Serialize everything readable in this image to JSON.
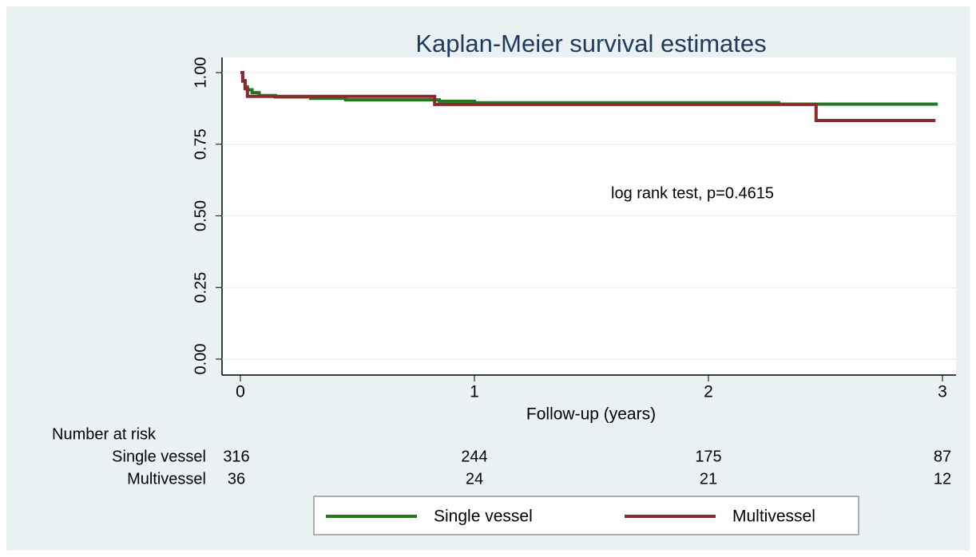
{
  "chart_data": {
    "type": "step",
    "title": "Kaplan-Meier survival estimates",
    "xlabel": "Follow-up (years)",
    "annotation": "log rank test, p=0.4615",
    "xlim": [
      0,
      3
    ],
    "ylim": [
      0,
      1
    ],
    "xticks": [
      0,
      1,
      2,
      3
    ],
    "yticks": [
      {
        "value": 0,
        "label": "0.00"
      },
      {
        "value": 0.25,
        "label": "0.25"
      },
      {
        "value": 0.5,
        "label": "0.50"
      },
      {
        "value": 0.75,
        "label": "0.75"
      },
      {
        "value": 1,
        "label": "1.00"
      }
    ],
    "grid": true,
    "legend": "bottom",
    "series": [
      {
        "name": "Single vessel",
        "color": "#1f7a1f",
        "x": [
          0,
          0.01,
          0.02,
          0.03,
          0.05,
          0.08,
          0.15,
          0.3,
          0.45,
          0.85,
          1.0,
          2.3,
          2.98
        ],
        "values": [
          1,
          0.97,
          0.95,
          0.94,
          0.93,
          0.92,
          0.915,
          0.91,
          0.905,
          0.9,
          0.895,
          0.89,
          0.89
        ]
      },
      {
        "name": "Multivessel",
        "color": "#8b2a2a",
        "x": [
          0,
          0.01,
          0.02,
          0.03,
          0.83,
          2.46,
          2.97
        ],
        "values": [
          1,
          0.972,
          0.944,
          0.917,
          0.889,
          0.833,
          0.833
        ]
      }
    ],
    "risk_table": {
      "title": "Number at risk",
      "rows": [
        {
          "name": "Single vessel",
          "values": [
            316,
            244,
            175,
            87
          ]
        },
        {
          "name": "Multivessel",
          "values": [
            36,
            24,
            21,
            12
          ]
        }
      ]
    }
  }
}
